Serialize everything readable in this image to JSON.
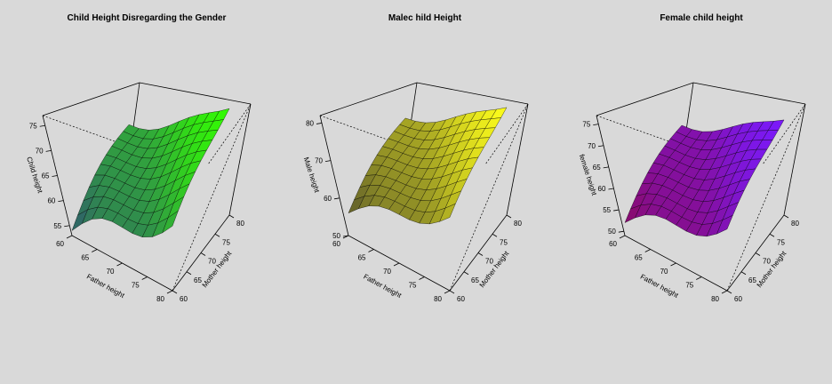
{
  "figure": {
    "background": "#d9d9d9"
  },
  "chart_data": [
    {
      "type": "surface",
      "title": "Child Height Disregarding the Gender",
      "xlabel": "Father height",
      "ylabel": "Mother height",
      "zlabel": "Child height",
      "x_ticks": [
        "60",
        "65",
        "70",
        "75",
        "80"
      ],
      "y_ticks": [
        "60",
        "65",
        "70",
        "75",
        "80"
      ],
      "z_ticks": [
        "55",
        "60",
        "65",
        "70",
        "75"
      ],
      "xlim": [
        60,
        80
      ],
      "ylim": [
        60,
        80
      ],
      "zlim": [
        53,
        77
      ],
      "grid_x": [
        60,
        62,
        64,
        66,
        68,
        70,
        72,
        74,
        76,
        78,
        80
      ],
      "grid_y": [
        60,
        62,
        64,
        66,
        68,
        70,
        72,
        74,
        76,
        78,
        80
      ],
      "z_min": 54,
      "z_max": 76,
      "color_low": "#2f5a6e",
      "color_high": "#33ff00"
    },
    {
      "type": "surface",
      "title": "Malec hild Height",
      "xlabel": "Father height",
      "ylabel": "Mother height",
      "zlabel": "Male height",
      "x_ticks": [
        "60",
        "65",
        "70",
        "75",
        "80"
      ],
      "y_ticks": [
        "60",
        "65",
        "70",
        "75",
        "80"
      ],
      "z_ticks": [
        "50",
        "60",
        "70",
        "80"
      ],
      "xlim": [
        60,
        80
      ],
      "ylim": [
        60,
        80
      ],
      "zlim": [
        50,
        82
      ],
      "grid_x": [
        60,
        62,
        64,
        66,
        68,
        70,
        72,
        74,
        76,
        78,
        80
      ],
      "grid_y": [
        60,
        62,
        64,
        66,
        68,
        70,
        72,
        74,
        76,
        78,
        80
      ],
      "z_min": 56,
      "z_max": 81,
      "color_low": "#5c5a2c",
      "color_high": "#ffff1a"
    },
    {
      "type": "surface",
      "title": "Female child height",
      "xlabel": "Father height",
      "ylabel": "Mother height",
      "zlabel": "female height",
      "x_ticks": [
        "60",
        "65",
        "70",
        "75",
        "80"
      ],
      "y_ticks": [
        "60",
        "65",
        "70",
        "75",
        "80"
      ],
      "z_ticks": [
        "50",
        "55",
        "60",
        "65",
        "70",
        "75"
      ],
      "xlim": [
        60,
        80
      ],
      "ylim": [
        60,
        80
      ],
      "zlim": [
        49,
        77
      ],
      "grid_x": [
        60,
        62,
        64,
        66,
        68,
        70,
        72,
        74,
        76,
        78,
        80
      ],
      "grid_y": [
        60,
        62,
        64,
        66,
        68,
        70,
        72,
        74,
        76,
        78,
        80
      ],
      "z_min": 52,
      "z_max": 73,
      "color_low": "#8a0a66",
      "color_high": "#7a1aff"
    }
  ]
}
